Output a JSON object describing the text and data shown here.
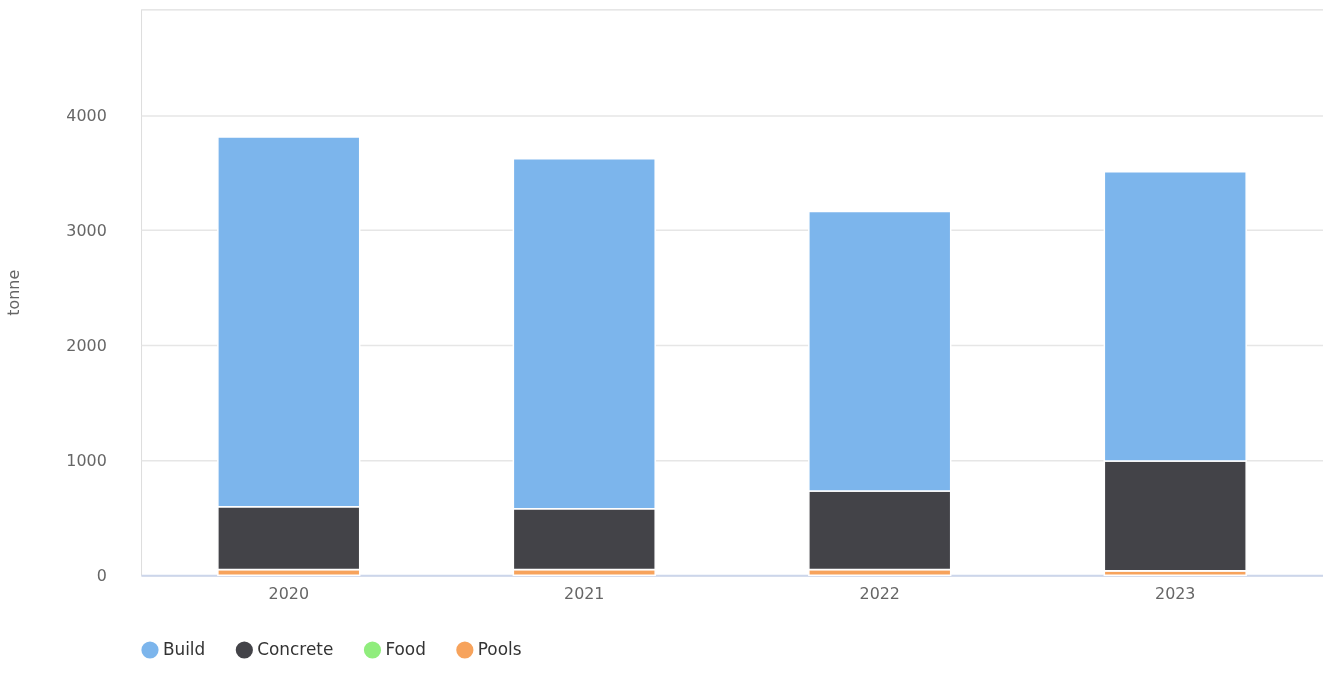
{
  "chart_data": {
    "type": "bar",
    "stacked": true,
    "ylabel": "tonne",
    "categories": [
      "2020",
      "2021",
      "2022",
      "2023"
    ],
    "series": [
      {
        "name": "Pools",
        "color": "#f7a35c",
        "values": [
          50,
          50,
          50,
          40
        ]
      },
      {
        "name": "Food",
        "color": "#90ed7d",
        "values": [
          0,
          0,
          0,
          0
        ]
      },
      {
        "name": "Concrete",
        "color": "#434348",
        "values": [
          546,
          529,
          684,
          954
        ]
      },
      {
        "name": "Build",
        "color": "#7cb5ec",
        "values": [
          3214,
          3041,
          2428,
          2514
        ]
      }
    ],
    "ylim": [
      0,
      4920
    ],
    "yticks": [
      0,
      1000,
      2000,
      3000,
      4000,
      {
        "value": 4920,
        "label": null
      }
    ],
    "grid": "y",
    "legend": "bottom"
  }
}
